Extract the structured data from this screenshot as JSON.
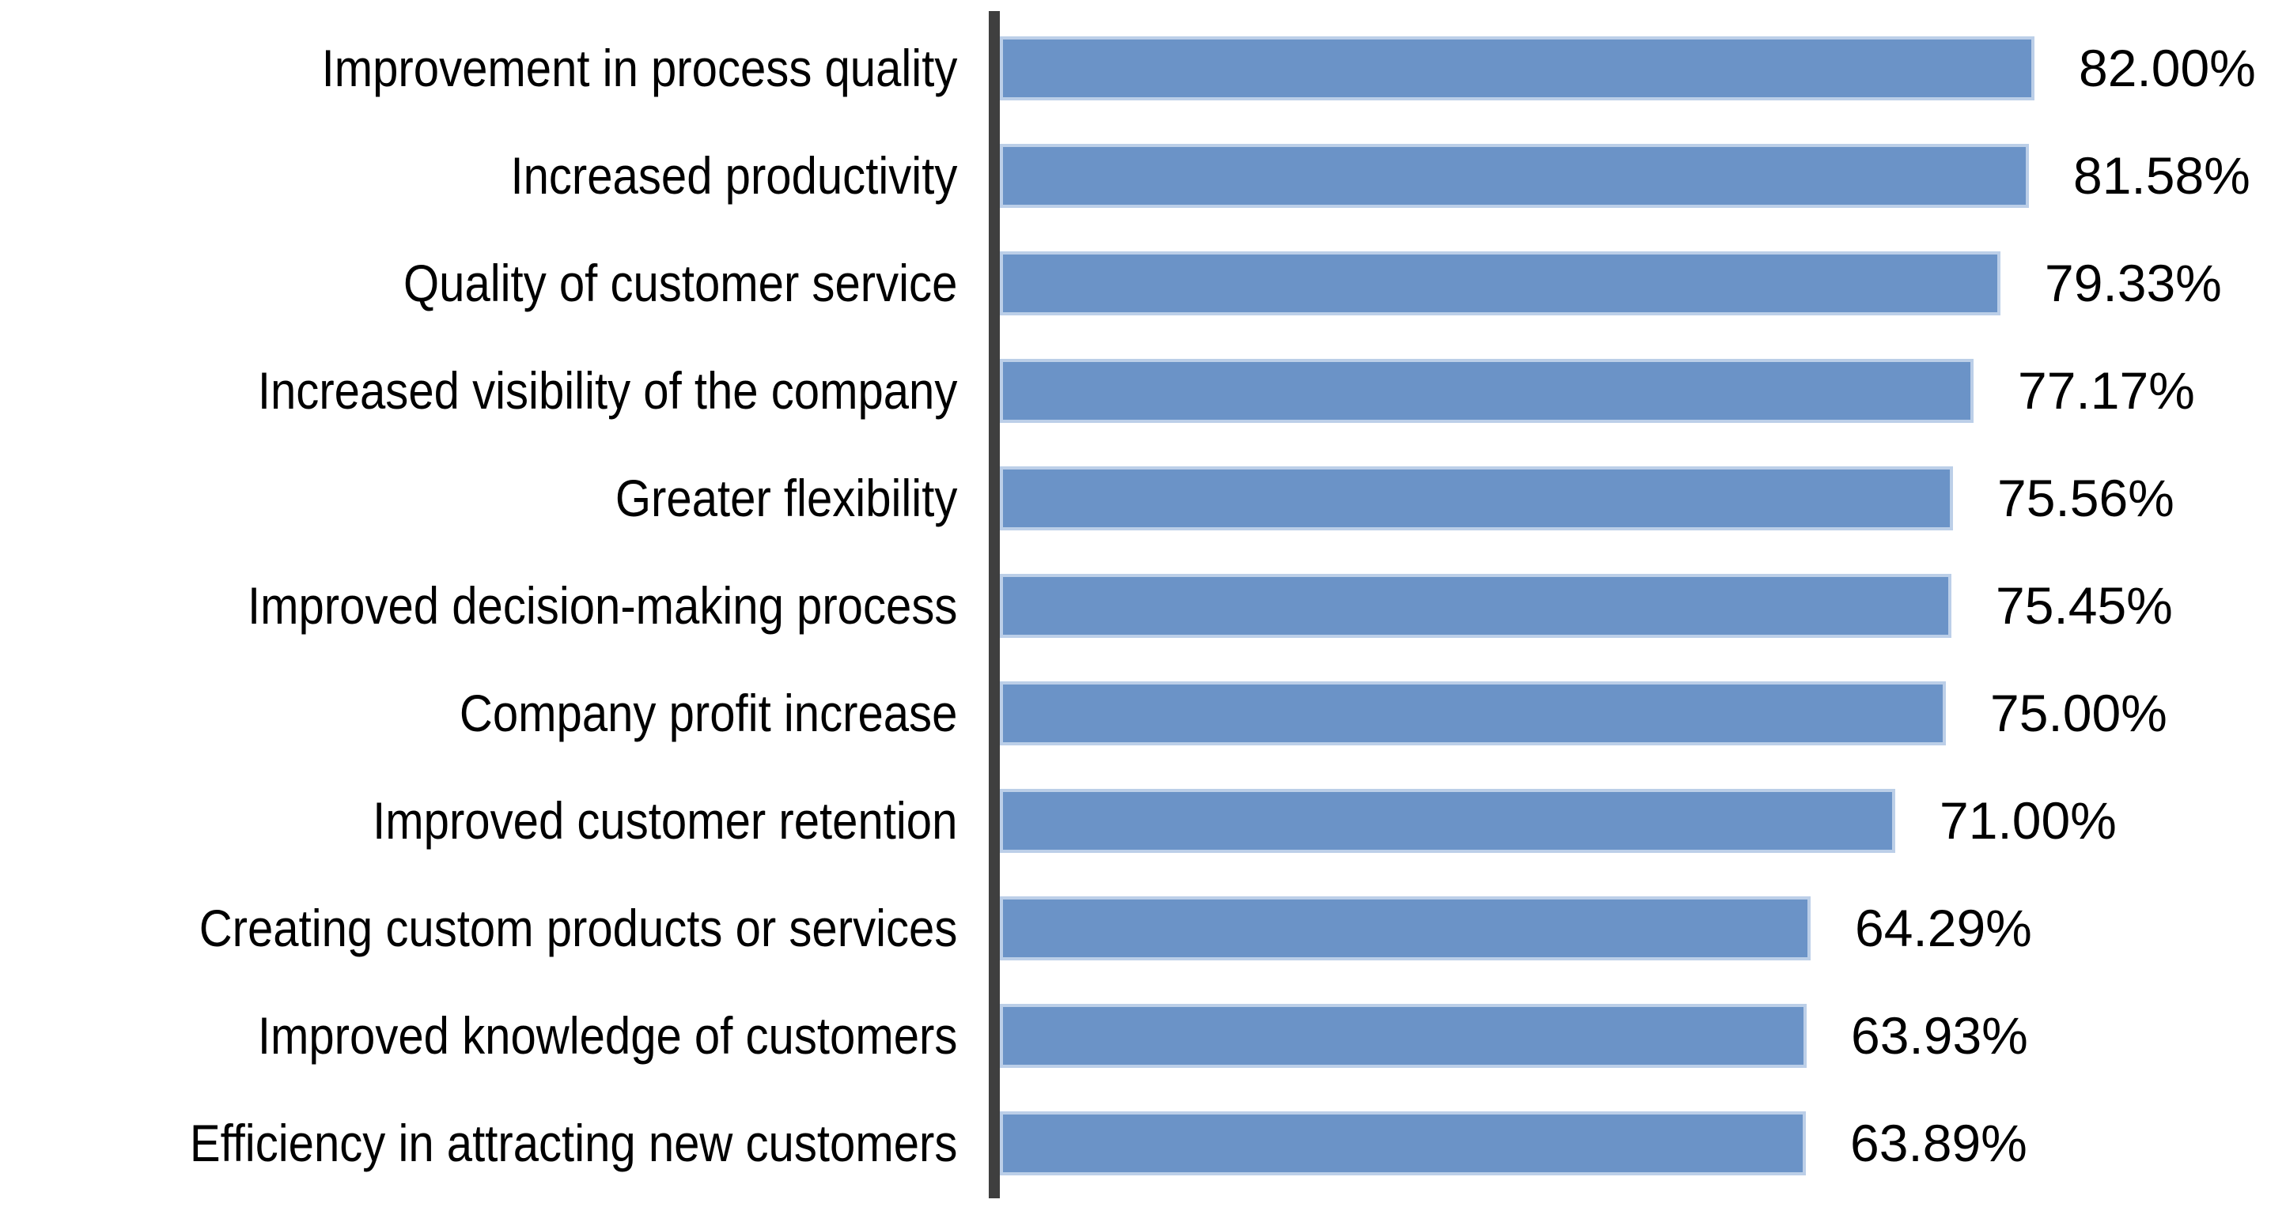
{
  "chart_data": {
    "type": "bar",
    "orientation": "horizontal",
    "title": "",
    "xlabel": "",
    "ylabel": "",
    "xlim": [
      0,
      100
    ],
    "grid": false,
    "legend": false,
    "categories": [
      "Improvement in process quality",
      "Increased productivity",
      "Quality of customer service",
      "Increased visibility of the company",
      "Greater flexibility",
      "Improved decision-making process",
      "Company profit increase",
      "Improved customer retention",
      "Creating custom products or services",
      "Improved knowledge of customers",
      "Efficiency in attracting new customers"
    ],
    "values": [
      82.0,
      81.58,
      79.33,
      77.17,
      75.56,
      75.45,
      75.0,
      71.0,
      64.29,
      63.93,
      63.89
    ],
    "value_labels": [
      "82.00%",
      "81.58%",
      "79.33%",
      "77.17%",
      "75.56%",
      "75.45%",
      "75.00%",
      "71.00%",
      "64.29%",
      "63.93%",
      "63.89%"
    ],
    "colors": {
      "bar_fill": "#6B93C7",
      "bar_border": "#BCCFE8",
      "axis_line": "#3F3F3F",
      "background": "#FFFFFF",
      "text": "#000000"
    }
  }
}
